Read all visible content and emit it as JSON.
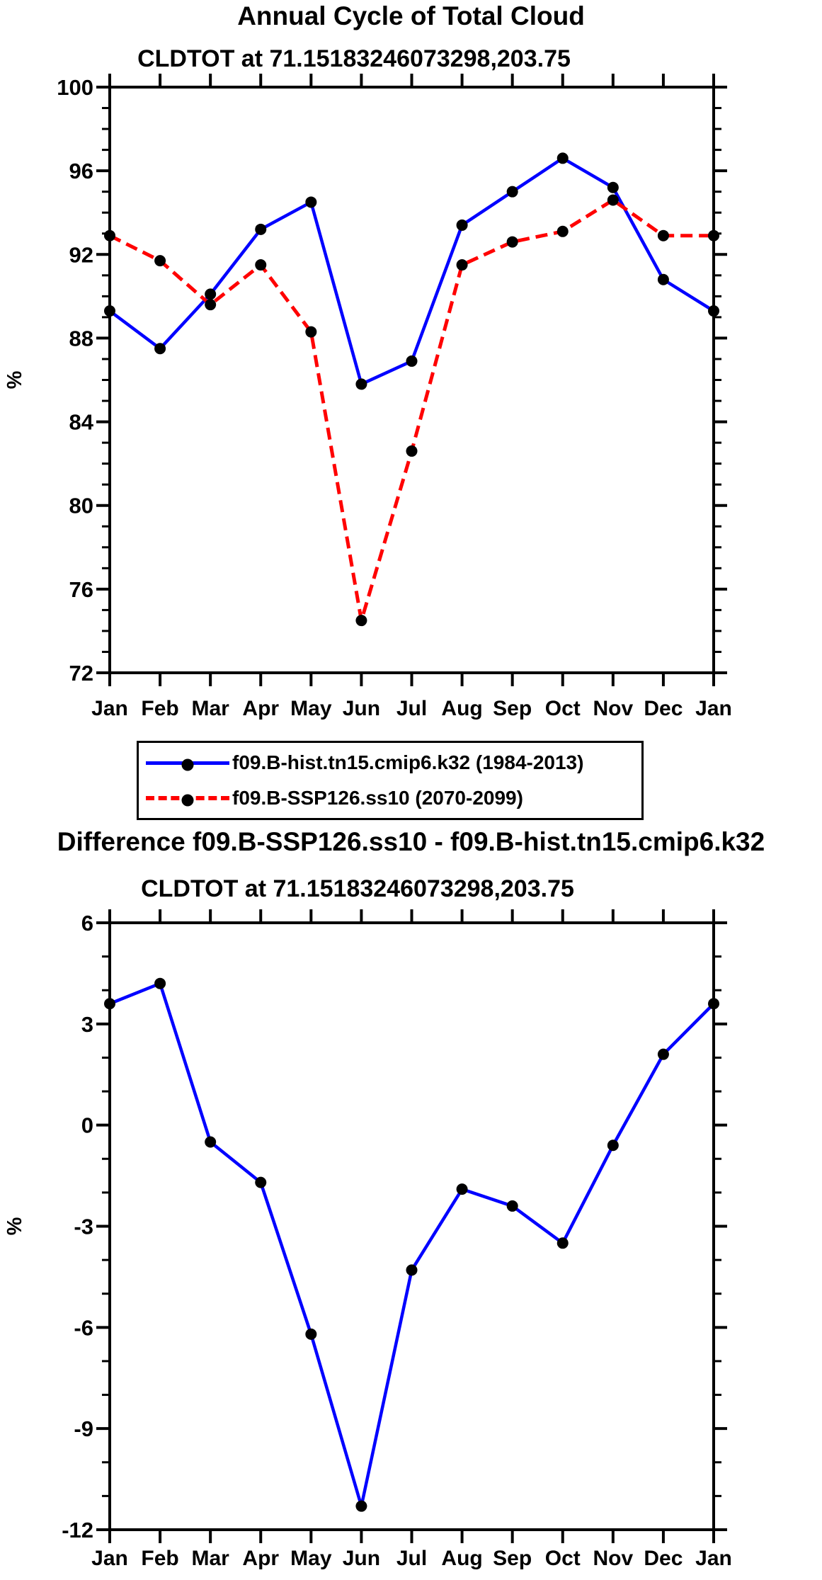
{
  "colors": {
    "hist_line": "#0000ff",
    "ssp_line": "#ff0000",
    "axis": "#000000",
    "marker": "#000000",
    "background": "#ffffff"
  },
  "legend": {
    "items": [
      {
        "label": "f09.B-hist.tn15.cmip6.k32 (1984-2013)",
        "color": "#0000ff",
        "style": "solid"
      },
      {
        "label": "f09.B-SSP126.ss10 (2070-2099)",
        "color": "#ff0000",
        "style": "dashed"
      }
    ]
  },
  "chart_data": [
    {
      "type": "line",
      "title": "Annual Cycle of Total Cloud",
      "subtitle": "CLDTOT at 71.15183246073298,203.75",
      "xlabel": "",
      "ylabel": "%",
      "categories": [
        "Jan",
        "Feb",
        "Mar",
        "Apr",
        "May",
        "Jun",
        "Jul",
        "Aug",
        "Sep",
        "Oct",
        "Nov",
        "Dec",
        "Jan"
      ],
      "ylim": [
        72,
        100
      ],
      "ytick_major": [
        100,
        96,
        92,
        88,
        84,
        80,
        76,
        72
      ],
      "ytick_minor_step": 1,
      "grid": false,
      "legend_position": "below",
      "series": [
        {
          "name": "f09.B-hist.tn15.cmip6.k32 (1984-2013)",
          "color": "#0000ff",
          "style": "solid",
          "marker": "circle",
          "values": [
            89.3,
            87.5,
            90.1,
            93.2,
            94.5,
            85.8,
            86.9,
            93.4,
            95.0,
            96.6,
            95.2,
            90.8,
            89.3
          ]
        },
        {
          "name": "f09.B-SSP126.ss10 (2070-2099)",
          "color": "#ff0000",
          "style": "dashed",
          "marker": "circle",
          "values": [
            92.9,
            91.7,
            89.6,
            91.5,
            88.3,
            74.5,
            82.6,
            91.5,
            92.6,
            93.1,
            94.6,
            92.9,
            92.9
          ]
        }
      ]
    },
    {
      "type": "line",
      "title": "Difference f09.B-SSP126.ss10 - f09.B-hist.tn15.cmip6.k32",
      "subtitle": "CLDTOT at 71.15183246073298,203.75",
      "xlabel": "",
      "ylabel": "%",
      "categories": [
        "Jan",
        "Feb",
        "Mar",
        "Apr",
        "May",
        "Jun",
        "Jul",
        "Aug",
        "Sep",
        "Oct",
        "Nov",
        "Dec",
        "Jan"
      ],
      "ylim": [
        -12,
        6
      ],
      "ytick_major": [
        6,
        3,
        0,
        -3,
        -6,
        -9,
        -12
      ],
      "ytick_minor_step": 1,
      "grid": false,
      "series": [
        {
          "name": "difference",
          "color": "#0000ff",
          "style": "solid",
          "marker": "circle",
          "values": [
            3.6,
            4.2,
            -0.5,
            -1.7,
            -6.2,
            -11.3,
            -4.3,
            -1.9,
            -2.4,
            -3.5,
            -0.6,
            2.1,
            3.6
          ]
        }
      ]
    }
  ]
}
